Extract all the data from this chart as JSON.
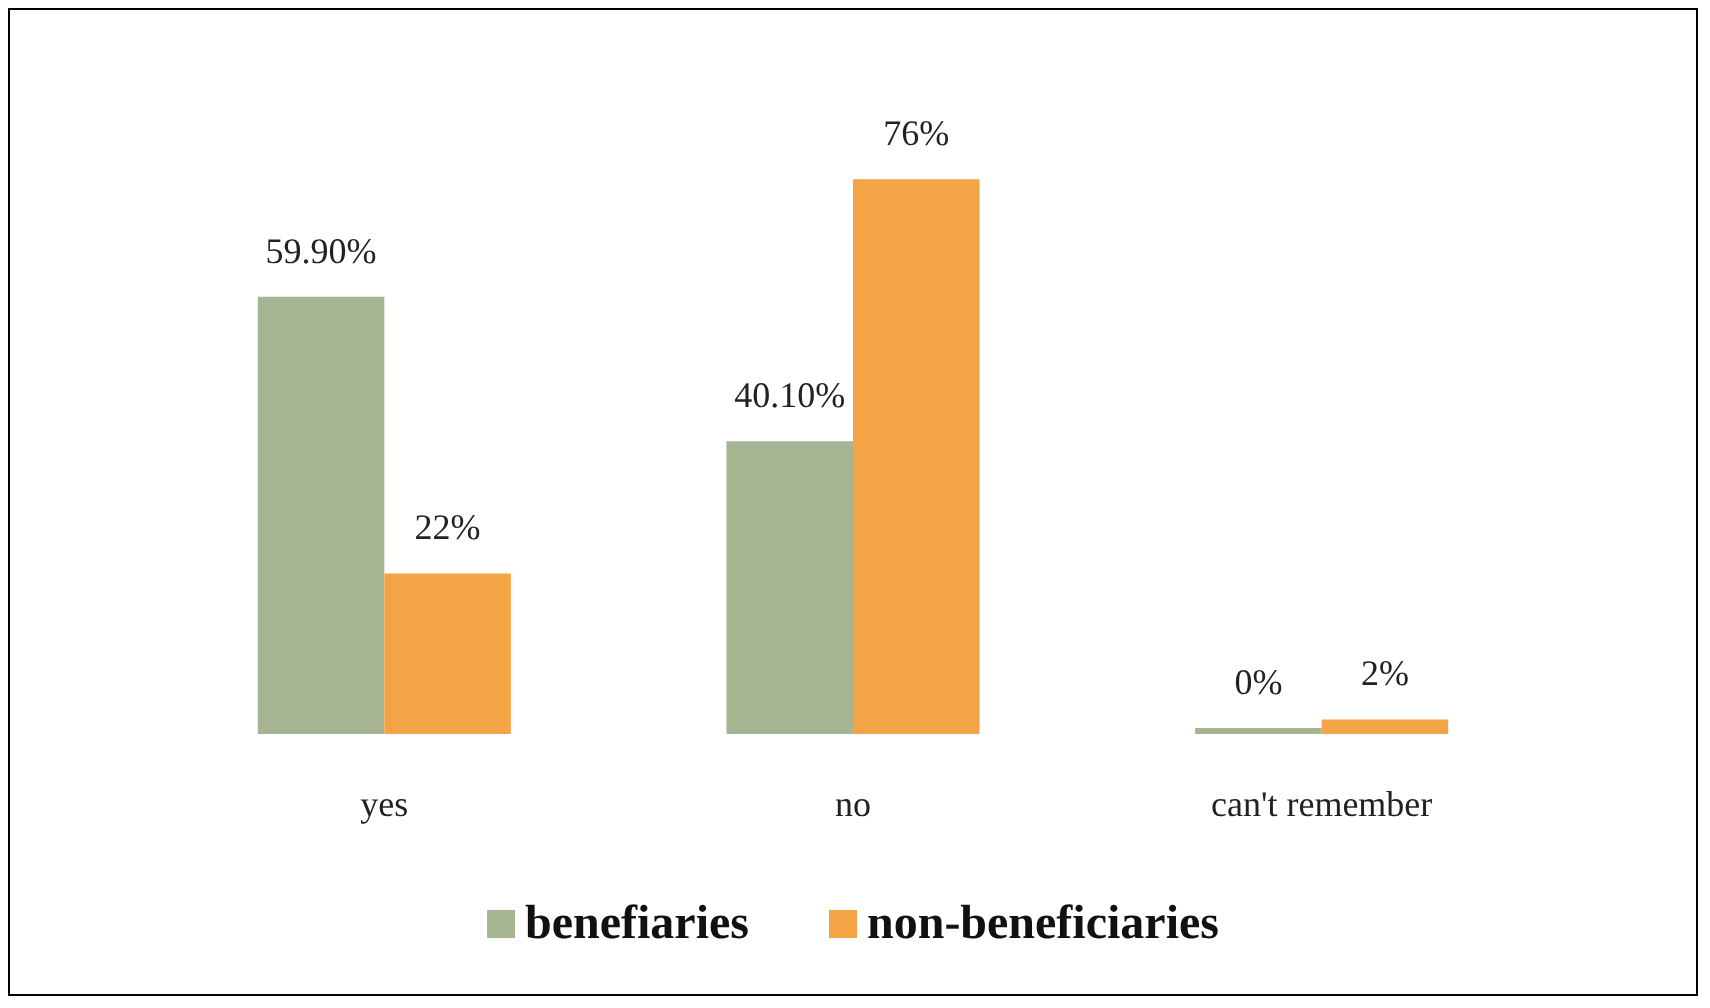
{
  "chart_data": {
    "type": "bar",
    "categories": [
      "yes",
      "no",
      "can't remember"
    ],
    "series": [
      {
        "name": "benefiaries",
        "color": "#a5b592",
        "values": [
          59.9,
          40.1,
          0
        ],
        "value_labels": [
          "59.90%",
          "40.10%",
          "0%"
        ]
      },
      {
        "name": "non-beneficiaries",
        "color": "#f3a545",
        "values": [
          22,
          76,
          2
        ],
        "value_labels": [
          "22%",
          "76%",
          "2%"
        ]
      }
    ],
    "legend": "bottom"
  }
}
